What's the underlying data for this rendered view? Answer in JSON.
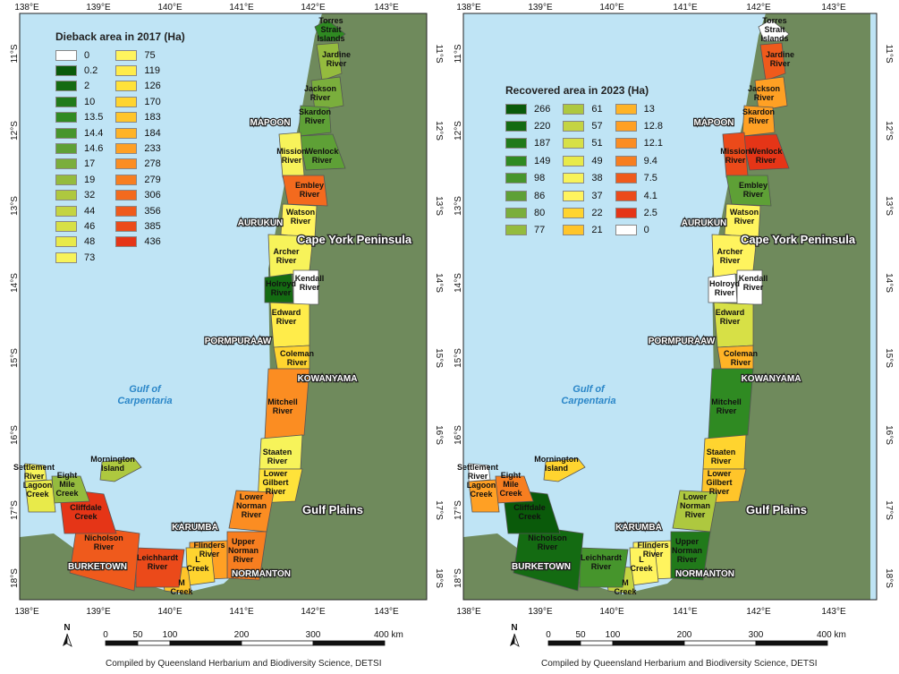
{
  "credit": "Compiled by Queensland Herbarium and Biodiversity Science, DETSI",
  "lon_ticks": [
    "138°E",
    "139°E",
    "140°E",
    "141°E",
    "142°E",
    "143°E"
  ],
  "lat_ticks": [
    "11°S",
    "12°S",
    "13°S",
    "14°S",
    "15°S",
    "16°S",
    "17°S",
    "18°S"
  ],
  "scale": {
    "labels": [
      "0",
      "50",
      "100",
      "200",
      "300",
      "400 km"
    ]
  },
  "north": "N",
  "towns": [
    "MAPOON",
    "AURUKUN",
    "PORMPURAAW",
    "KOWANYAMA",
    "KARUMBA",
    "BURKETOWN",
    "NORMANTON"
  ],
  "regions": [
    "Cape York Peninsula",
    "Gulf Plains"
  ],
  "sea": [
    "Gulf of",
    "Carpentaria"
  ],
  "basins": [
    [
      "Torres",
      "Strait",
      "Islands"
    ],
    [
      "Jardine",
      "River"
    ],
    [
      "Jackson",
      "River"
    ],
    [
      "Skardon",
      "River"
    ],
    [
      "Wenlock",
      "River"
    ],
    [
      "Mission",
      "River"
    ],
    [
      "Embley",
      "River"
    ],
    [
      "Watson",
      "River"
    ],
    [
      "Archer",
      "River"
    ],
    [
      "Holroyd",
      "River"
    ],
    [
      "Kendall",
      "River"
    ],
    [
      "Edward",
      "River"
    ],
    [
      "Coleman",
      "River"
    ],
    [
      "Mitchell",
      "River"
    ],
    [
      "Staaten",
      "River"
    ],
    [
      "Lower",
      "Gilbert",
      "River"
    ],
    [
      "Lower",
      "Norman",
      "River"
    ],
    [
      "Upper",
      "Norman",
      "River"
    ],
    [
      "Flinders",
      "River"
    ],
    [
      "L",
      "Creek"
    ],
    [
      "M",
      "Creek"
    ],
    [
      "Leichhardt",
      "River"
    ],
    [
      "Nicholson",
      "River"
    ],
    [
      "Cliffdale",
      "Creek"
    ],
    [
      "Eight",
      "Mile",
      "Creek"
    ],
    [
      "Lagoon",
      "Creek"
    ],
    [
      "Settlement",
      "River"
    ],
    [
      "Mornington",
      "Island"
    ]
  ],
  "maps": [
    {
      "legend_title": "Dieback area in 2017 (Ha)",
      "legend": [
        {
          "label": "0",
          "color": "#ffffff"
        },
        {
          "label": "0.2",
          "color": "#0a5a0a"
        },
        {
          "label": "2",
          "color": "#146b12"
        },
        {
          "label": "10",
          "color": "#217a1a"
        },
        {
          "label": "13.5",
          "color": "#2f8a22"
        },
        {
          "label": "14.4",
          "color": "#46952c"
        },
        {
          "label": "14.6",
          "color": "#5ea036"
        },
        {
          "label": "17",
          "color": "#7aae3c"
        },
        {
          "label": "19",
          "color": "#94bb3e"
        },
        {
          "label": "32",
          "color": "#aec83f"
        },
        {
          "label": "44",
          "color": "#c4d442"
        },
        {
          "label": "46",
          "color": "#d7e046"
        },
        {
          "label": "48",
          "color": "#e8ea4a"
        },
        {
          "label": "73",
          "color": "#f7f35a"
        },
        {
          "label": "75",
          "color": "#fff45e"
        },
        {
          "label": "119",
          "color": "#ffec4a"
        },
        {
          "label": "126",
          "color": "#ffe23a"
        },
        {
          "label": "170",
          "color": "#ffd42f"
        },
        {
          "label": "183",
          "color": "#ffc52a"
        },
        {
          "label": "184",
          "color": "#ffb326"
        },
        {
          "label": "233",
          "color": "#ffa024"
        },
        {
          "label": "278",
          "color": "#fb8d22"
        },
        {
          "label": "279",
          "color": "#f77e20"
        },
        {
          "label": "306",
          "color": "#f36a1e"
        },
        {
          "label": "356",
          "color": "#ef5a1c"
        },
        {
          "label": "385",
          "color": "#eb4a1a"
        },
        {
          "label": "436",
          "color": "#e53517"
        }
      ],
      "basin_colors": [
        "#2f8a22",
        "#94bb3e",
        "#7aae3c",
        "#5ea036",
        "#5ea036",
        "#f7f35a",
        "#f36a1e",
        "#fff45e",
        "#f7f35a",
        "#146b12",
        "#ffffff",
        "#ffec4a",
        "#ffd42f",
        "#fb8d22",
        "#f7f35a",
        "#ffe23a",
        "#fb8d22",
        "#f77e20",
        "#ffa024",
        "#ffd42f",
        "#ffc52a",
        "#eb4a1a",
        "#ef5a1c",
        "#e53517",
        "#94bb3e",
        "#e8ea4a",
        "#f7f35a",
        "#aec83f"
      ]
    },
    {
      "legend_title": "Recovered area in 2023 (Ha)",
      "legend": [
        {
          "label": "266",
          "color": "#0a5a0a"
        },
        {
          "label": "220",
          "color": "#146b12"
        },
        {
          "label": "187",
          "color": "#217a1a"
        },
        {
          "label": "149",
          "color": "#2f8a22"
        },
        {
          "label": "98",
          "color": "#46952c"
        },
        {
          "label": "86",
          "color": "#5ea036"
        },
        {
          "label": "80",
          "color": "#7aae3c"
        },
        {
          "label": "77",
          "color": "#94bb3e"
        },
        {
          "label": "61",
          "color": "#aec83f"
        },
        {
          "label": "57",
          "color": "#c4d442"
        },
        {
          "label": "51",
          "color": "#d7e046"
        },
        {
          "label": "49",
          "color": "#e8ea4a"
        },
        {
          "label": "38",
          "color": "#f7f35a"
        },
        {
          "label": "37",
          "color": "#fff45e"
        },
        {
          "label": "22",
          "color": "#ffd42f"
        },
        {
          "label": "21",
          "color": "#ffc52a"
        },
        {
          "label": "13",
          "color": "#ffb326"
        },
        {
          "label": "12.8",
          "color": "#ffa024"
        },
        {
          "label": "12.1",
          "color": "#fb8d22"
        },
        {
          "label": "9.4",
          "color": "#f77e20"
        },
        {
          "label": "7.5",
          "color": "#ef5a1c"
        },
        {
          "label": "4.1",
          "color": "#eb4a1a"
        },
        {
          "label": "2.5",
          "color": "#e53517"
        },
        {
          "label": "0",
          "color": "#ffffff"
        }
      ],
      "basin_colors": [
        "#ffffff",
        "#ef5a1c",
        "#ffa024",
        "#ffa024",
        "#e53517",
        "#eb4a1a",
        "#5ea036",
        "#fff45e",
        "#fff45e",
        "#ffffff",
        "#ffffff",
        "#d7e046",
        "#ffb326",
        "#2f8a22",
        "#ffd42f",
        "#ffc52a",
        "#aec83f",
        "#217a1a",
        "#fff45e",
        "#fff45e",
        "#c4d442",
        "#46952c",
        "#146b12",
        "#0a5a0a",
        "#f77e20",
        "#ffa024",
        "#ffffff",
        "#ffd42f"
      ]
    }
  ]
}
